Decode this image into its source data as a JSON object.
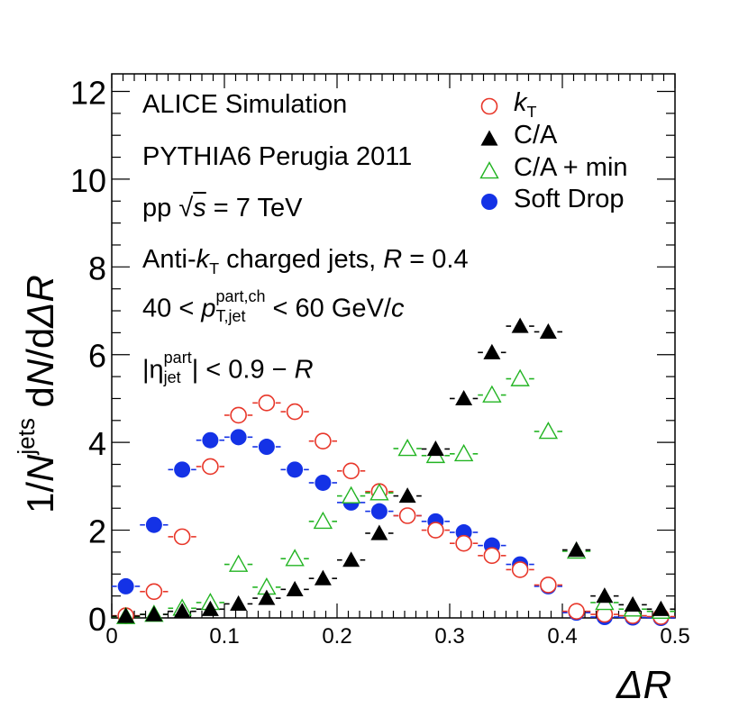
{
  "chart_data": {
    "type": "scatter",
    "title": "",
    "xlabel": "ΔR",
    "ylabel": "1/N jets dN/dΔR",
    "xlim": [
      0,
      0.5
    ],
    "ylim": [
      0,
      12.4
    ],
    "x_ticks": [
      "0",
      "0.1",
      "0.2",
      "0.3",
      "0.4",
      "0.5"
    ],
    "y_ticks": [
      "0",
      "2",
      "4",
      "6",
      "8",
      "10",
      "12"
    ],
    "bin_width": 0.025,
    "x": [
      0.0125,
      0.0375,
      0.0625,
      0.0875,
      0.1125,
      0.1375,
      0.1625,
      0.1875,
      0.2125,
      0.2375,
      0.2625,
      0.2875,
      0.3125,
      0.3375,
      0.3625,
      0.3875,
      0.4125,
      0.4375,
      0.4625,
      0.4875
    ],
    "series": [
      {
        "name": "k_T",
        "marker": "open-circle",
        "color": "#e8372a",
        "values": [
          0.05,
          0.6,
          1.85,
          3.45,
          4.62,
          4.9,
          4.7,
          4.03,
          3.35,
          2.88,
          2.33,
          2.0,
          1.7,
          1.42,
          1.1,
          0.75,
          0.15,
          0.08,
          0.05,
          0.03
        ]
      },
      {
        "name": "C/A",
        "marker": "filled-triangle",
        "color": "#000000",
        "values": [
          0.04,
          0.08,
          0.15,
          0.2,
          0.32,
          0.45,
          0.65,
          0.9,
          1.32,
          1.93,
          2.78,
          3.85,
          5.0,
          6.05,
          6.65,
          6.52,
          1.55,
          0.5,
          0.3,
          0.2
        ]
      },
      {
        "name": "C/A + min",
        "marker": "open-triangle",
        "color": "#22b422",
        "values": [
          0.03,
          0.08,
          0.22,
          0.35,
          1.22,
          0.7,
          1.35,
          2.2,
          2.78,
          2.85,
          3.86,
          3.7,
          3.74,
          5.08,
          5.45,
          4.25,
          1.52,
          0.35,
          0.2,
          0.15
        ]
      },
      {
        "name": "Soft Drop",
        "marker": "filled-circle",
        "color": "#1432e6",
        "values": [
          0.72,
          2.12,
          3.38,
          4.05,
          4.12,
          3.9,
          3.38,
          3.08,
          2.63,
          2.43,
          2.33,
          2.2,
          1.95,
          1.65,
          1.22,
          0.72,
          0.12,
          0.02,
          0.01,
          0.0
        ]
      }
    ],
    "legend_position": "top-right"
  },
  "annotations": {
    "line1": "ALICE Simulation",
    "line2": "PYTHIA6 Perugia 2011",
    "line3": {
      "pre": "pp ",
      "sqrt": "√",
      "var": "s",
      "post": " = 7 TeV"
    },
    "line4": {
      "pre": "Anti-",
      "k": "k",
      "ksub": "T",
      "mid": " charged jets, ",
      "r": "R",
      "post": " = 0.4"
    },
    "line5": {
      "pre": "40 < ",
      "p": "p",
      "sup": "part,ch",
      "sub": "T,jet",
      "mid": " < 60 GeV/",
      "c": "c"
    },
    "line6": {
      "pre": "|η",
      "sup": "part",
      "sub": "jet",
      "mid": "| < 0.9 − ",
      "r": "R"
    }
  },
  "axis_titles": {
    "y_pre": "1/",
    "y_N": "N",
    "y_sup": "jets",
    "y_mid": " d",
    "y_N2": "N",
    "y_mid2": "/d",
    "y_var": "ΔR",
    "x_title": "ΔR"
  },
  "legend": {
    "kt": {
      "k": "k",
      "sub": "T"
    },
    "ca": "C/A",
    "camin": "C/A + min",
    "sd": "Soft Drop"
  }
}
